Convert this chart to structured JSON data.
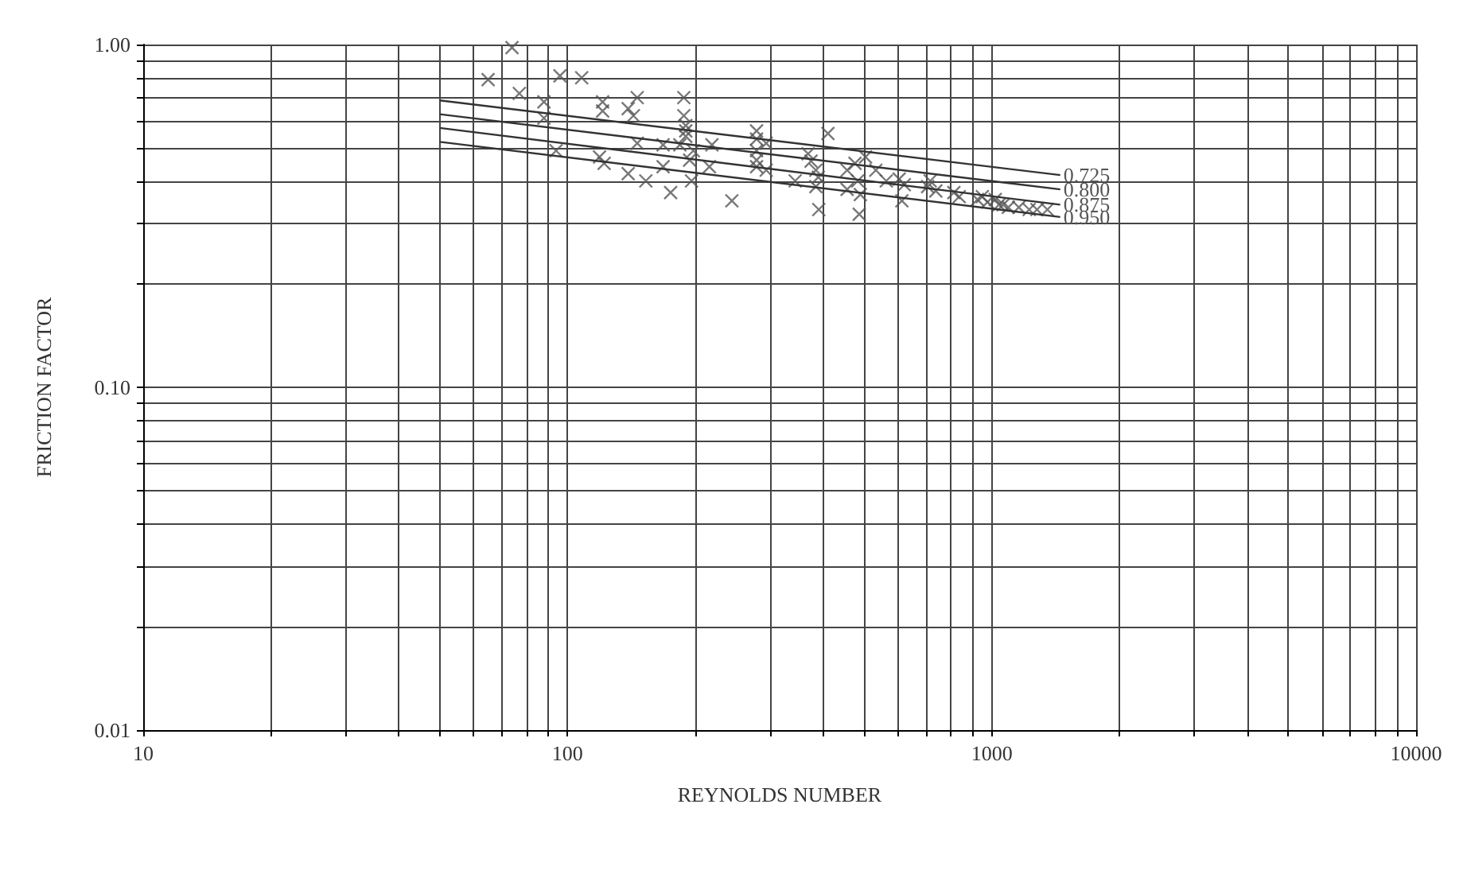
{
  "chart_data": {
    "type": "scatter",
    "xlabel": "REYNOLDS NUMBER",
    "ylabel": "FRICTION FACTOR",
    "log": "xy",
    "grid": true,
    "legend": false,
    "marker": "cross",
    "xlim": [
      10,
      10000
    ],
    "ylim": [
      0.01,
      1
    ],
    "xticks": [
      10,
      {
        "value": 20,
        "label": null
      },
      {
        "value": 30,
        "label": null
      },
      {
        "value": 40,
        "label": null
      },
      {
        "value": 50,
        "label": null
      },
      {
        "value": 60,
        "label": null
      },
      {
        "value": 70,
        "label": null
      },
      {
        "value": 80,
        "label": null
      },
      {
        "value": 90,
        "label": null
      },
      100,
      {
        "value": 200,
        "label": null
      },
      {
        "value": 300,
        "label": null
      },
      {
        "value": 400,
        "label": null
      },
      {
        "value": 500,
        "label": null
      },
      {
        "value": 600,
        "label": null
      },
      {
        "value": 700,
        "label": null
      },
      {
        "value": 800,
        "label": null
      },
      {
        "value": 900,
        "label": null
      },
      1000,
      {
        "value": 2000,
        "label": null
      },
      {
        "value": 3000,
        "label": null
      },
      {
        "value": 4000,
        "label": null
      },
      {
        "value": 5000,
        "label": null
      },
      {
        "value": 6000,
        "label": null
      },
      {
        "value": 7000,
        "label": null
      },
      {
        "value": 8000,
        "label": null
      },
      {
        "value": 9000,
        "label": null
      },
      10000
    ],
    "yticks": [
      {
        "value": 0.01,
        "label": "0.01"
      },
      {
        "value": 0.02,
        "label": null
      },
      {
        "value": 0.03,
        "label": null
      },
      {
        "value": 0.04,
        "label": null
      },
      {
        "value": 0.05,
        "label": null
      },
      {
        "value": 0.06,
        "label": null
      },
      {
        "value": 0.07,
        "label": null
      },
      {
        "value": 0.08,
        "label": null
      },
      {
        "value": 0.09,
        "label": null
      },
      {
        "value": 0.1,
        "label": "0.10"
      },
      {
        "value": 0.2,
        "label": null
      },
      {
        "value": 0.3,
        "label": null
      },
      {
        "value": 0.4,
        "label": null
      },
      {
        "value": 0.5,
        "label": null
      },
      {
        "value": 0.6,
        "label": null
      },
      {
        "value": 0.7,
        "label": null
      },
      {
        "value": 0.8,
        "label": null
      },
      {
        "value": 0.9,
        "label": null
      },
      {
        "value": 1,
        "label": "1.00"
      }
    ],
    "series": [
      {
        "color": "#555555",
        "x": [
          74,
          65,
          77,
          96,
          108,
          88,
          88,
          94,
          121,
          121,
          146,
          139,
          143,
          188,
          188,
          190,
          190,
          190,
          146,
          119,
          122,
          139,
          153,
          168,
          168,
          175,
          196,
          194,
          198,
          219,
          216,
          244,
          279,
          279,
          279,
          279,
          279,
          184,
          411,
          369,
          375,
          385,
          385,
          391,
          344,
          294,
          294,
          456,
          476,
          504,
          483,
          490,
          487,
          533,
          564,
          605,
          614,
          622,
          706,
          716,
          738,
          814,
          838,
          925,
          977,
          1019,
          1064,
          1158,
          1225,
          1278,
          1352,
          950,
          1040,
          1094,
          456,
          390
        ],
        "values": [
          0.98,
          0.79,
          0.72,
          0.81,
          0.8,
          0.68,
          0.61,
          0.49,
          0.68,
          0.64,
          0.7,
          0.65,
          0.62,
          0.7,
          0.62,
          0.58,
          0.56,
          0.54,
          0.515,
          0.47,
          0.45,
          0.42,
          0.4,
          0.51,
          0.44,
          0.37,
          0.4,
          0.46,
          0.49,
          0.51,
          0.44,
          0.35,
          0.56,
          0.53,
          0.49,
          0.46,
          0.44,
          0.51,
          0.55,
          0.48,
          0.457,
          0.43,
          0.385,
          0.33,
          0.4,
          0.515,
          0.43,
          0.43,
          0.45,
          0.47,
          0.4,
          0.365,
          0.32,
          0.43,
          0.4,
          0.405,
          0.35,
          0.39,
          0.385,
          0.4,
          0.374,
          0.37,
          0.36,
          0.353,
          0.347,
          0.353,
          0.341,
          0.335,
          0.33,
          0.33,
          0.33,
          0.36,
          0.341,
          0.335,
          0.378,
          0.41
        ]
      },
      {
        "type": "line",
        "marker": "none",
        "name": "0.725",
        "color": "#333333",
        "x": [
          50,
          1450
        ],
        "values": [
          0.687,
          0.416
        ]
      },
      {
        "type": "line",
        "marker": "none",
        "name": "0.800",
        "color": "#333333",
        "x": [
          50,
          1450
        ],
        "values": [
          0.626,
          0.378
        ]
      },
      {
        "type": "line",
        "marker": "none",
        "name": "0.875",
        "color": "#333333",
        "x": [
          50,
          1450
        ],
        "values": [
          0.571,
          0.341
        ]
      },
      {
        "type": "line",
        "marker": "none",
        "name": "0.950",
        "color": "#333333",
        "x": [
          50,
          1450
        ],
        "values": [
          0.52,
          0.314
        ]
      }
    ]
  }
}
